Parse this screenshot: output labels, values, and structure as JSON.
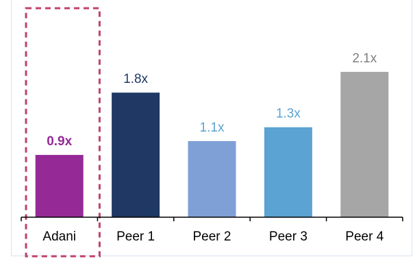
{
  "chart_data": {
    "type": "bar",
    "categories": [
      "Adani",
      "Peer 1",
      "Peer 2",
      "Peer 3",
      "Peer 4"
    ],
    "values": [
      0.9,
      1.8,
      1.1,
      1.3,
      2.1
    ],
    "value_labels": [
      "0.9x",
      "1.8x",
      "1.1x",
      "1.3x",
      "2.1x"
    ],
    "bar_colors": [
      "#952A96",
      "#1F3864",
      "#7F9FD7",
      "#5BA3D2",
      "#A6A6A6"
    ],
    "label_colors": [
      "#952A96",
      "#1F3864",
      "#5BA3D2",
      "#5BA3D2",
      "#7F7F7F"
    ],
    "label_bold": [
      true,
      false,
      false,
      false,
      false
    ],
    "highlight_category": "Adani",
    "highlight_style": "dashed-box",
    "highlight_color": "#C0406E",
    "axis_color": "#000000",
    "frame_color": "#D9E2EF",
    "ylim": [
      0,
      2.4
    ],
    "grid": false,
    "legend": "none",
    "title": "",
    "xlabel": "",
    "ylabel": ""
  }
}
